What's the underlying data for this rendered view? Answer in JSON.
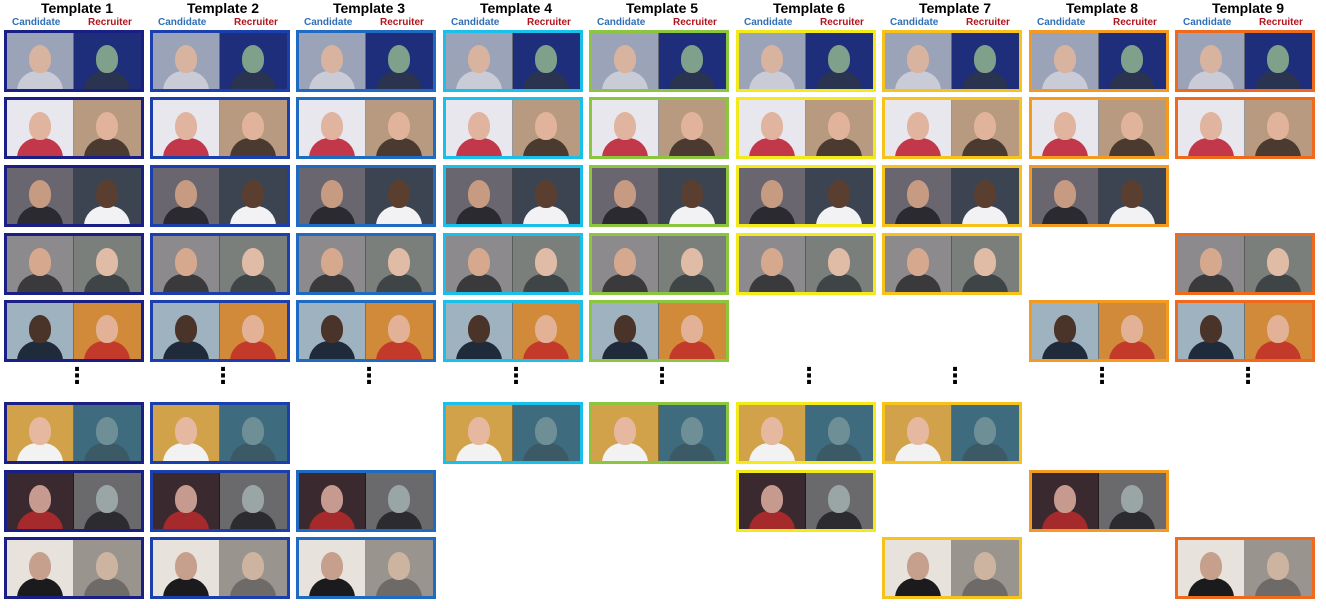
{
  "labels": {
    "candidate": "Candidate",
    "recruiter": "Recruiter",
    "ellipsis": "⋮"
  },
  "templates": [
    {
      "title": "Template 1",
      "color": "#1a1f86",
      "rows": [
        true,
        true,
        true,
        true,
        true,
        true,
        true,
        true
      ]
    },
    {
      "title": "Template 2",
      "color": "#1c3fae",
      "rows": [
        true,
        true,
        true,
        true,
        true,
        true,
        true,
        true
      ]
    },
    {
      "title": "Template 3",
      "color": "#1f6bc2",
      "rows": [
        true,
        true,
        true,
        true,
        true,
        false,
        true,
        true
      ]
    },
    {
      "title": "Template 4",
      "color": "#18c0ea",
      "rows": [
        true,
        true,
        true,
        true,
        true,
        true,
        false,
        false
      ]
    },
    {
      "title": "Template 5",
      "color": "#8cc63f",
      "rows": [
        true,
        true,
        true,
        true,
        true,
        true,
        false,
        false
      ]
    },
    {
      "title": "Template 6",
      "color": "#f2ea1a",
      "rows": [
        true,
        true,
        true,
        true,
        false,
        true,
        true,
        false
      ]
    },
    {
      "title": "Template 7",
      "color": "#f7c21b",
      "rows": [
        true,
        true,
        true,
        true,
        false,
        true,
        false,
        true
      ]
    },
    {
      "title": "Template 8",
      "color": "#f39a21",
      "rows": [
        true,
        true,
        true,
        false,
        true,
        false,
        true,
        false
      ]
    },
    {
      "title": "Template 9",
      "color": "#ef6a1c",
      "rows": [
        true,
        true,
        false,
        true,
        true,
        false,
        false,
        true
      ]
    }
  ],
  "videos": [
    {
      "c_bg": "#9aa3b8",
      "c_skin": "#d8b3a0",
      "c_shirt": "#c9ccd6",
      "r_bg": "#1f2e7a",
      "r_skin": "#7fa08a",
      "r_shirt": "#2a3350"
    },
    {
      "c_bg": "#e9e7ee",
      "c_skin": "#e0b49e",
      "c_shirt": "#c2374a",
      "r_bg": "#b79a7f",
      "r_skin": "#e1b39a",
      "r_shirt": "#4a3a30"
    },
    {
      "c_bg": "#6a6670",
      "c_skin": "#c79a82",
      "c_shirt": "#2b2a30",
      "r_bg": "#3c4452",
      "r_skin": "#5a3f30",
      "r_shirt": "#f2f2f4"
    },
    {
      "c_bg": "#8d8a8d",
      "c_skin": "#d6a98f",
      "c_shirt": "#3a3a3c",
      "r_bg": "#7a7f7c",
      "r_skin": "#e0bba5",
      "r_shirt": "#3f4446"
    },
    {
      "c_bg": "#9fb2c0",
      "c_skin": "#4a3328",
      "c_shirt": "#1f2a3a",
      "r_bg": "#d08a3a",
      "r_skin": "#e2b196",
      "r_shirt": "#c43a2a"
    },
    {
      "c_bg": "#d2a24a",
      "c_skin": "#e7b8a0",
      "c_shirt": "#f2f2f2",
      "r_bg": "#3f6b7e",
      "r_skin": "#6f8f97",
      "r_shirt": "#3b5a66"
    },
    {
      "c_bg": "#3a2a2f",
      "c_skin": "#c79a90",
      "c_shirt": "#a62a2c",
      "r_bg": "#6a6a6d",
      "r_skin": "#9aa6a6",
      "r_shirt": "#2c2c30"
    },
    {
      "c_bg": "#e8e2dc",
      "c_skin": "#c6a08c",
      "c_shirt": "#1b1b1d",
      "r_bg": "#9a948f",
      "r_skin": "#cdb4a0",
      "r_shirt": "#6d6a68"
    }
  ]
}
